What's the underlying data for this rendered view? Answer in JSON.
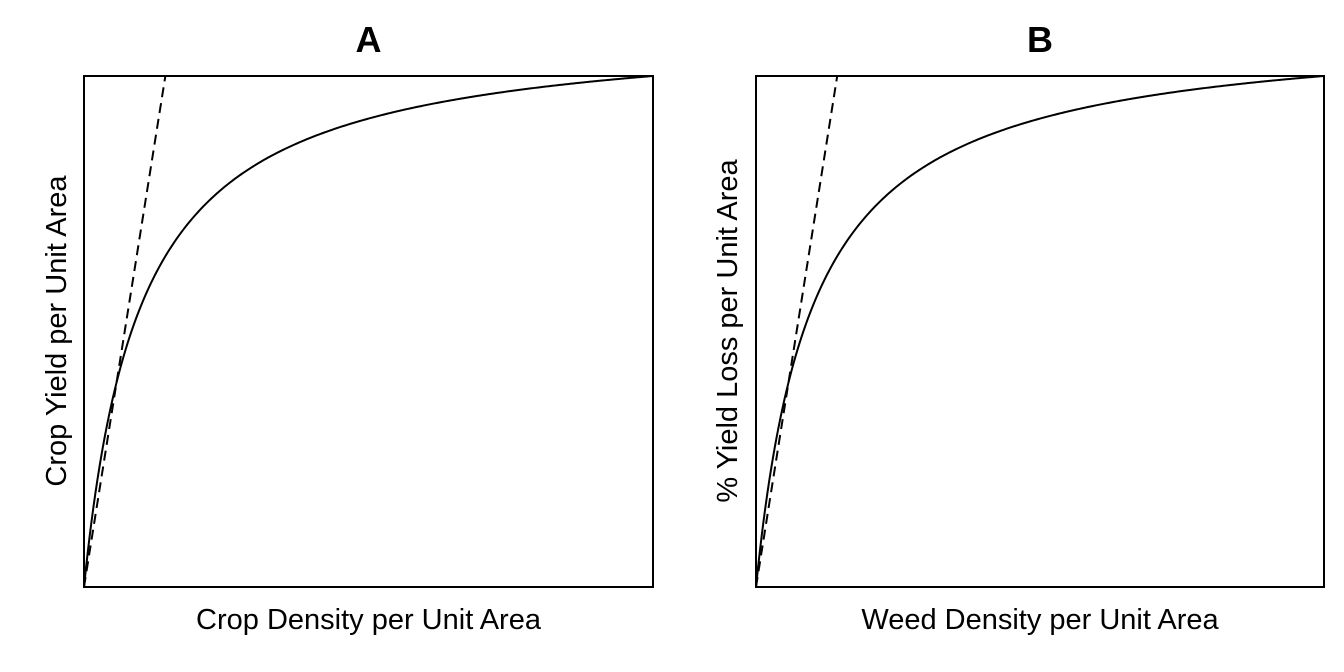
{
  "chart_data": [
    {
      "type": "line",
      "title": "A",
      "xlabel": "Crop Density per Unit Area",
      "ylabel": "Crop Yield per Unit Area",
      "ticks": "none",
      "grid": false,
      "legend": "none",
      "series": [
        {
          "style": "solid",
          "color": "#000000",
          "x": [
            0,
            0.25,
            0.5,
            1,
            1.5,
            2,
            3,
            4,
            5,
            6,
            7,
            8,
            9,
            10
          ],
          "y": [
            0,
            0.317,
            0.482,
            0.65,
            0.734,
            0.784,
            0.842,
            0.874,
            0.895,
            0.909,
            0.92,
            0.928,
            0.935,
            0.94
          ]
        },
        {
          "style": "dashed",
          "color": "#000000",
          "x": [
            0,
            1.43
          ],
          "y": [
            0,
            0.94
          ]
        }
      ]
    },
    {
      "type": "line",
      "title": "B",
      "xlabel": "Weed Density per Unit Area",
      "ylabel": "% Yield Loss per Unit Area",
      "ticks": "none",
      "grid": false,
      "legend": "none",
      "series": [
        {
          "style": "solid",
          "color": "#000000",
          "x": [
            0,
            0.25,
            0.5,
            1,
            1.5,
            2,
            3,
            4,
            5,
            6,
            7,
            8,
            9,
            10
          ],
          "y": [
            0,
            0.317,
            0.482,
            0.65,
            0.734,
            0.784,
            0.842,
            0.874,
            0.895,
            0.909,
            0.92,
            0.928,
            0.935,
            0.94
          ]
        },
        {
          "style": "dashed",
          "color": "#000000",
          "x": [
            0,
            1.43
          ],
          "y": [
            0,
            0.94
          ]
        }
      ]
    }
  ]
}
